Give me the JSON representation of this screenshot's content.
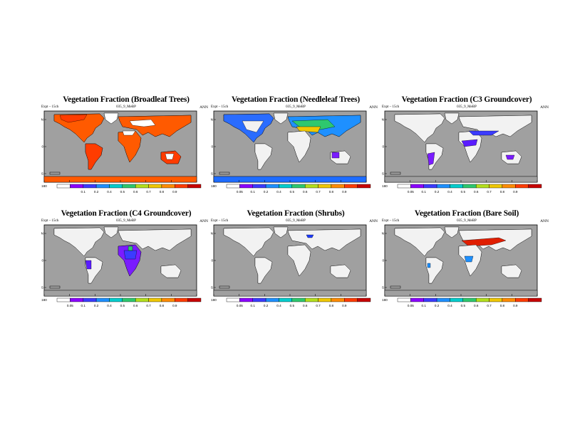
{
  "colors": {
    "ocean": "#a0a0a0",
    "land": "#f2f2f2",
    "colorbar": [
      "#ffffff",
      "#8b00ff",
      "#3b3bff",
      "#1e90ff",
      "#00cdcd",
      "#2ec86e",
      "#b4e01e",
      "#f0c800",
      "#ff8c00",
      "#ff3c00",
      "#c80000"
    ]
  },
  "common": {
    "expt": "Expt – 15ch",
    "case": "035_9_MeBP",
    "season": "ANN",
    "lon_ticks": [
      "180",
      "120W",
      "60W",
      "0",
      "60E",
      "120E",
      "180"
    ],
    "lat_ticks": [
      "60N",
      "0",
      "60S"
    ],
    "small_lat": [
      "40N",
      "40S"
    ]
  },
  "panels": [
    {
      "title": "Vegetation Fraction (Broadleaf Trees)",
      "cb_labels": [
        "",
        "0.1",
        "0.2",
        "0.4",
        "0.5",
        "0.6",
        "0.7",
        "0.8",
        "0.9"
      ]
    },
    {
      "title": "Vegetation Fraction (Needleleaf Trees)",
      "cb_labels": [
        "0.05",
        "0.1",
        "0.2",
        "0.4",
        "0.5",
        "0.6",
        "0.7",
        "0.8",
        "0.9"
      ]
    },
    {
      "title": "Vegetation Fraction (C3 Groundcover)",
      "cb_labels": [
        "0.05",
        "0.1",
        "0.2",
        "0.4",
        "0.5",
        "0.6",
        "0.7",
        "0.8",
        "0.9"
      ]
    },
    {
      "title": "Vegetation Fraction (C4 Groundcover)",
      "cb_labels": [
        "0.05",
        "0.1",
        "0.2",
        "0.4",
        "0.5",
        "0.6",
        "0.7",
        "0.8",
        "0.9"
      ]
    },
    {
      "title": "Vegetation Fraction (Shrubs)",
      "cb_labels": [
        "0.05",
        "0.1",
        "0.2",
        "0.4",
        "0.5",
        "0.6",
        "0.7",
        "0.8",
        "0.9"
      ]
    },
    {
      "title": "Vegetation Fraction (Bare Soil)",
      "cb_labels": [
        "0.05",
        "0.1",
        "0.2",
        "0.4",
        "0.5",
        "0.6",
        "0.7",
        "0.8",
        "0.9"
      ]
    }
  ]
}
